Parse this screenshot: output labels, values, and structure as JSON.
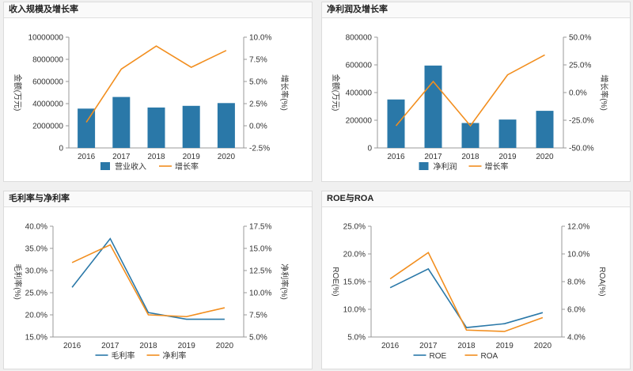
{
  "colors": {
    "bar": "#2a78a8",
    "line_orange": "#f28e1e",
    "line_blue": "#2a78a8",
    "axis": "#999999",
    "text": "#333333"
  },
  "chart_data": [
    {
      "type": "bar",
      "title": "收入规模及增长率",
      "categories": [
        "2016",
        "2017",
        "2018",
        "2019",
        "2020"
      ],
      "ylabel": "金额(万元)",
      "y2label": "增长率(%)",
      "yticks": [
        "10000000",
        "8000000",
        "6000000",
        "4000000",
        "2000000",
        "0"
      ],
      "y2ticks": [
        "10.0%",
        "7.5%",
        "5.0%",
        "2.5%",
        "0.0%",
        "-2.5%"
      ],
      "ylim": [
        0,
        10000000
      ],
      "y2lim": [
        -2.5,
        10.0
      ],
      "series": [
        {
          "name": "营业收入",
          "type": "bar",
          "axis": "left",
          "values": [
            3550000,
            4600000,
            3650000,
            3800000,
            4050000
          ]
        },
        {
          "name": "增长率",
          "type": "line",
          "axis": "right",
          "values": [
            0.4,
            6.4,
            9.0,
            6.6,
            8.5
          ]
        }
      ],
      "legend": "bottom"
    },
    {
      "type": "bar",
      "title": "净利润及增长率",
      "categories": [
        "2016",
        "2017",
        "2018",
        "2019",
        "2020"
      ],
      "ylabel": "金额(万元)",
      "y2label": "增长率(%)",
      "yticks": [
        "800000",
        "600000",
        "400000",
        "200000",
        "0"
      ],
      "y2ticks": [
        "50.0%",
        "25.0%",
        "0.0%",
        "-25.0%",
        "-50.0%"
      ],
      "ylim": [
        0,
        800000
      ],
      "y2lim": [
        -50,
        50
      ],
      "series": [
        {
          "name": "净利润",
          "type": "bar",
          "axis": "left",
          "values": [
            350000,
            595000,
            180000,
            205000,
            268000
          ]
        },
        {
          "name": "增长率",
          "type": "line",
          "axis": "right",
          "values": [
            -30,
            10,
            -30,
            16,
            34
          ]
        }
      ],
      "legend": "bottom"
    },
    {
      "type": "line",
      "title": "毛利率与净利率",
      "categories": [
        "2016",
        "2017",
        "2018",
        "2019",
        "2020"
      ],
      "ylabel": "毛利率(%)",
      "y2label": "净利率(%)",
      "yticks": [
        "40.0%",
        "35.0%",
        "30.0%",
        "25.0%",
        "20.0%",
        "15.0%"
      ],
      "y2ticks": [
        "17.5%",
        "15.0%",
        "12.5%",
        "10.0%",
        "7.5%",
        "5.0%"
      ],
      "ylim": [
        15,
        40
      ],
      "y2lim": [
        5,
        17.5
      ],
      "series": [
        {
          "name": "毛利率",
          "type": "line",
          "axis": "left",
          "color": "blue",
          "values": [
            26.2,
            37.2,
            20.5,
            19.0,
            19.0
          ]
        },
        {
          "name": "净利率",
          "type": "line",
          "axis": "right",
          "color": "orange",
          "values": [
            13.4,
            15.4,
            7.5,
            7.3,
            8.3
          ]
        }
      ],
      "legend": "bottom"
    },
    {
      "type": "line",
      "title": "ROE与ROA",
      "categories": [
        "2016",
        "2017",
        "2018",
        "2019",
        "2020"
      ],
      "ylabel": "ROE(%)",
      "y2label": "ROA(%)",
      "yticks": [
        "25.0%",
        "20.0%",
        "15.0%",
        "10.0%",
        "5.0%"
      ],
      "y2ticks": [
        "12.0%",
        "10.0%",
        "8.0%",
        "6.0%",
        "4.0%"
      ],
      "ylim": [
        5,
        25
      ],
      "y2lim": [
        4,
        12
      ],
      "series": [
        {
          "name": "ROE",
          "type": "line",
          "axis": "left",
          "color": "blue",
          "values": [
            13.9,
            17.3,
            6.7,
            7.4,
            9.4
          ]
        },
        {
          "name": "ROA",
          "type": "line",
          "axis": "right",
          "color": "orange",
          "values": [
            8.2,
            10.1,
            4.5,
            4.4,
            5.4
          ]
        }
      ],
      "legend": "bottom"
    }
  ]
}
